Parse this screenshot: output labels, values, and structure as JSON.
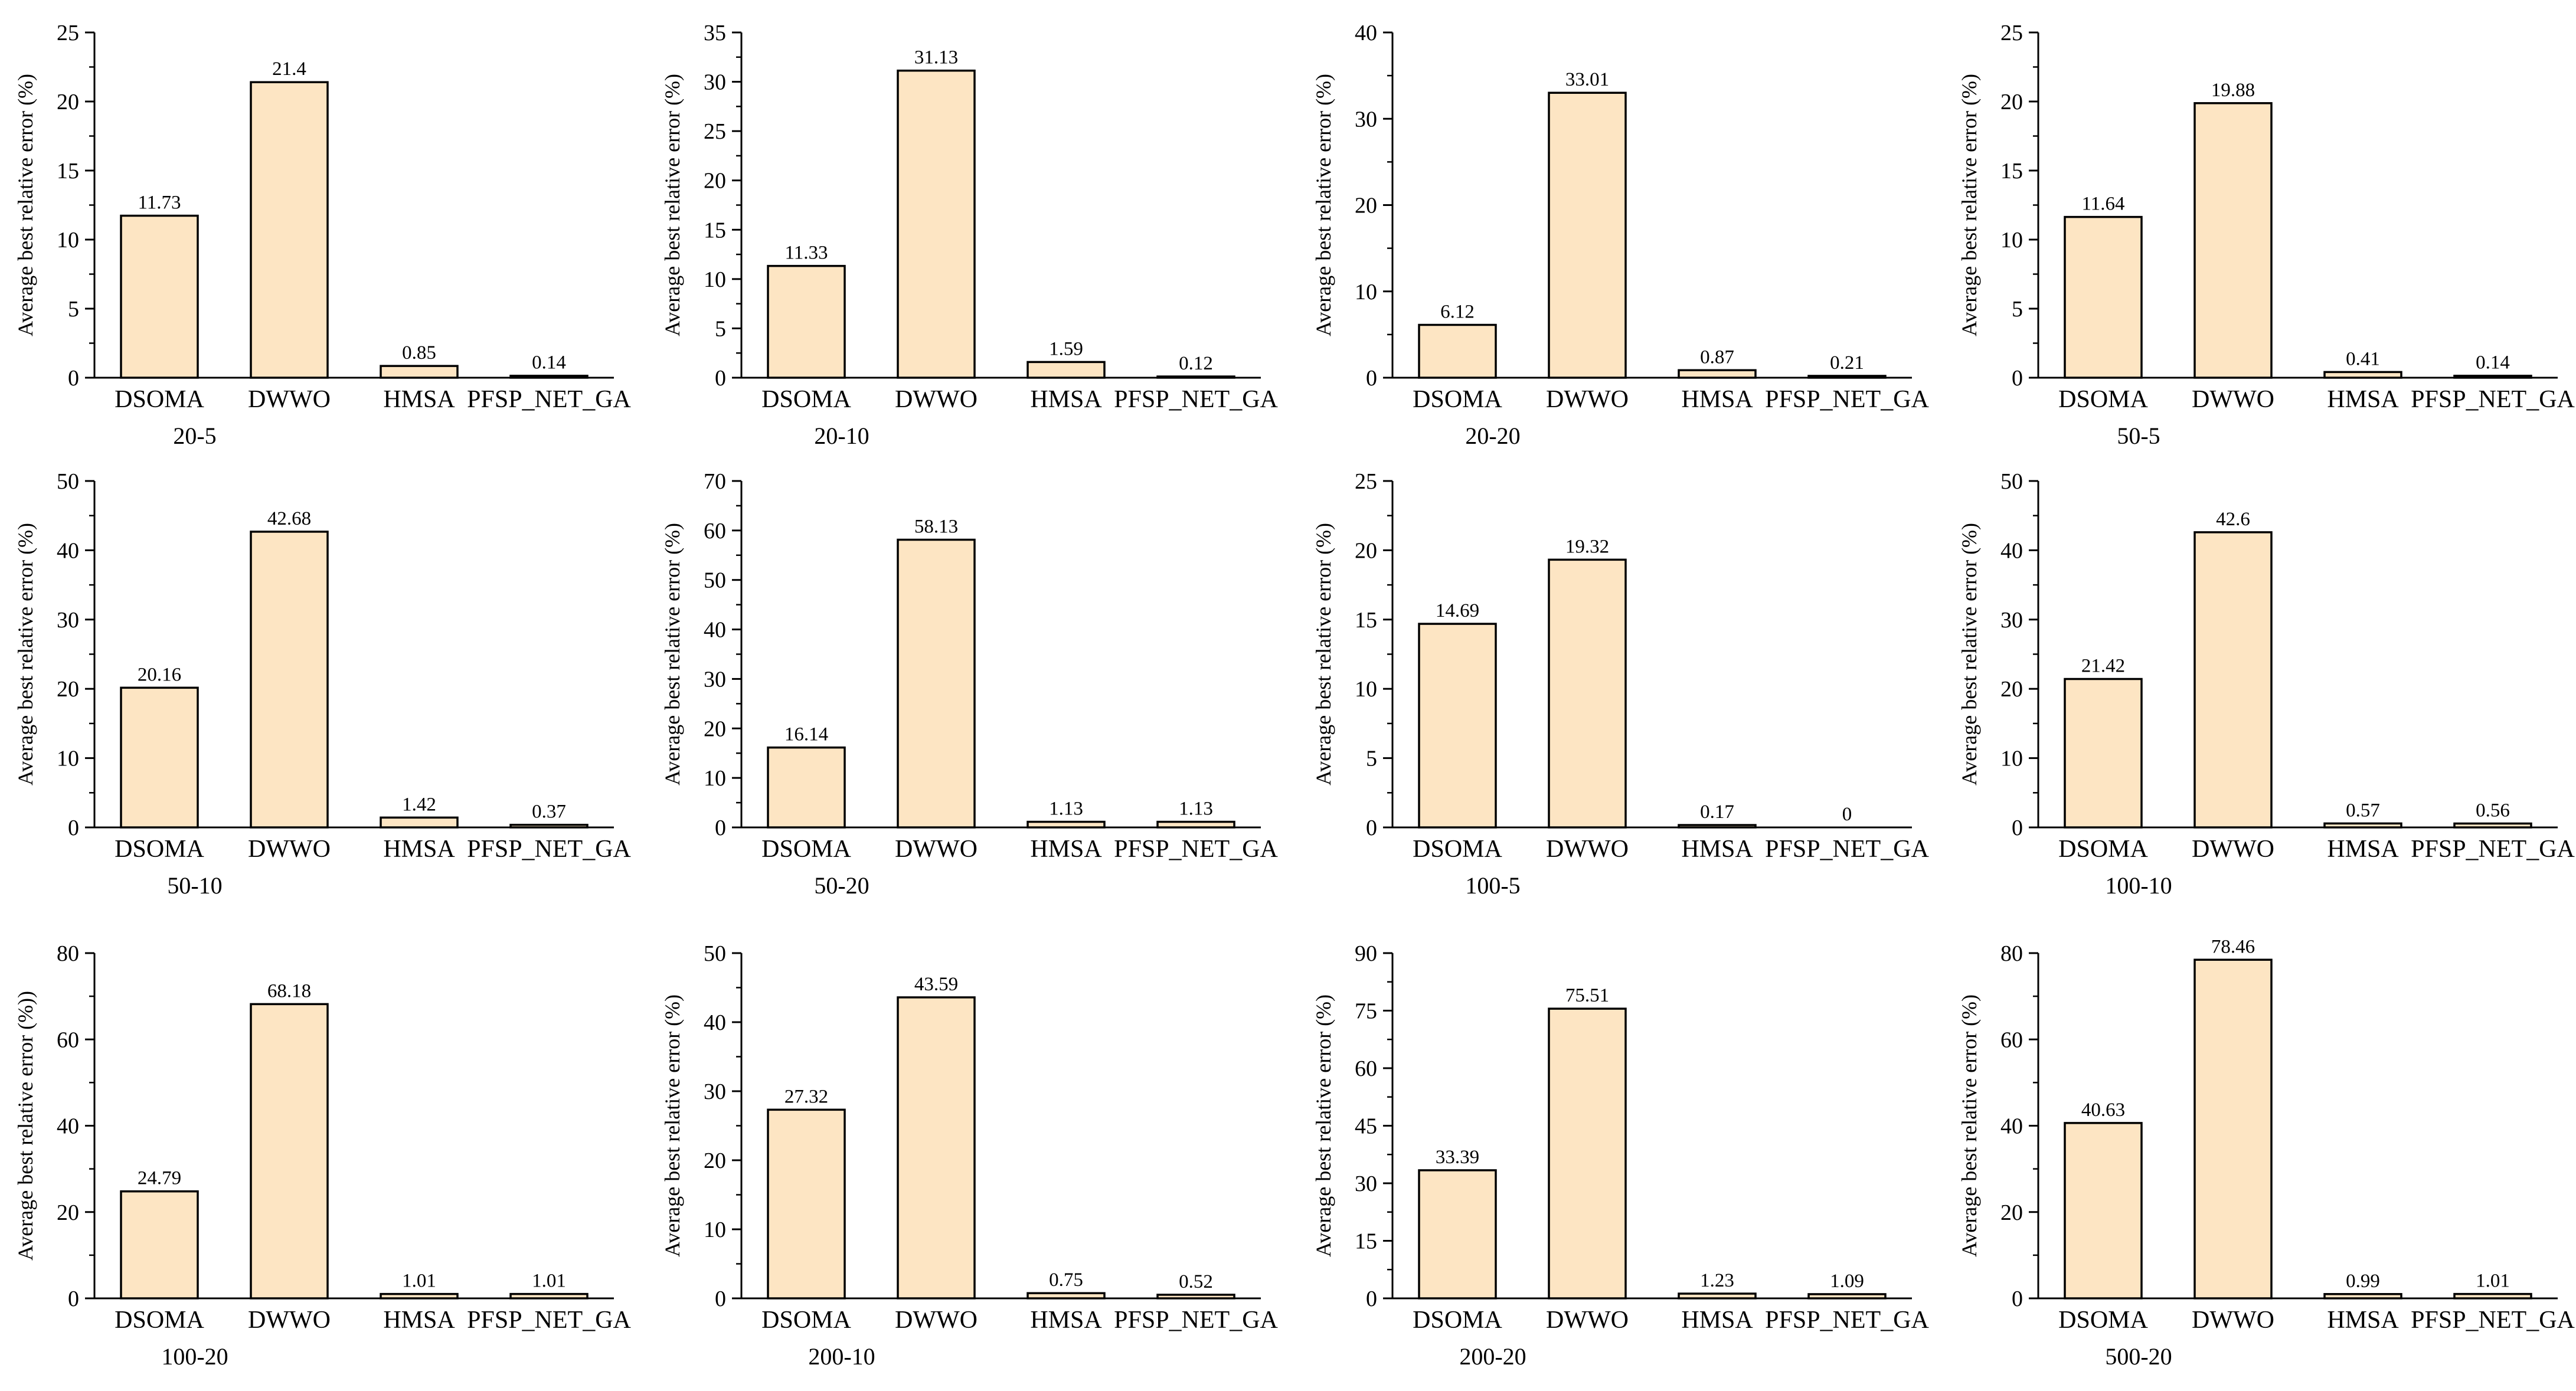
{
  "colors": {
    "bar_fill": "#FDE5C3",
    "bar_stroke": "#000000",
    "axis": "#000000"
  },
  "chart_data": [
    {
      "type": "bar",
      "title": "20-5",
      "ylabel": "Average best relative error (%)",
      "categories": [
        "DSOMA",
        "DWWO",
        "HMSA",
        "PFSP_NET_GA"
      ],
      "values": [
        11.73,
        21.4,
        0.85,
        0.14
      ],
      "value_labels": [
        "11.73",
        "21.4",
        "0.85",
        "0.14"
      ],
      "ylim": [
        0,
        25
      ],
      "yticks": [
        0,
        5,
        10,
        15,
        20,
        25
      ]
    },
    {
      "type": "bar",
      "title": "20-10",
      "ylabel": "Average best relative error (%)",
      "categories": [
        "DSOMA",
        "DWWO",
        "HMSA",
        "PFSP_NET_GA"
      ],
      "values": [
        11.33,
        31.13,
        1.59,
        0.12
      ],
      "value_labels": [
        "11.33",
        "31.13",
        "1.59",
        "0.12"
      ],
      "ylim": [
        0,
        35
      ],
      "yticks": [
        0,
        5,
        10,
        15,
        20,
        25,
        30,
        35
      ]
    },
    {
      "type": "bar",
      "title": "20-20",
      "ylabel": "Average best relative error (%)",
      "categories": [
        "DSOMA",
        "DWWO",
        "HMSA",
        "PFSP_NET_GA"
      ],
      "values": [
        6.12,
        33.01,
        0.87,
        0.21
      ],
      "value_labels": [
        "6.12",
        "33.01",
        "0.87",
        "0.21"
      ],
      "ylim": [
        0,
        40
      ],
      "yticks": [
        0,
        10,
        20,
        30,
        40
      ]
    },
    {
      "type": "bar",
      "title": "50-5",
      "ylabel": "Average best relative error (%)",
      "categories": [
        "DSOMA",
        "DWWO",
        "HMSA",
        "PFSP_NET_GA"
      ],
      "values": [
        11.64,
        19.88,
        0.41,
        0.14
      ],
      "value_labels": [
        "11.64",
        "19.88",
        "0.41",
        "0.14"
      ],
      "ylim": [
        0,
        25
      ],
      "yticks": [
        0,
        5,
        10,
        15,
        20,
        25
      ]
    },
    {
      "type": "bar",
      "title": "50-10",
      "ylabel": "Average best relative error (%)",
      "categories": [
        "DSOMA",
        "DWWO",
        "HMSA",
        "PFSP_NET_GA"
      ],
      "values": [
        20.16,
        42.68,
        1.42,
        0.37
      ],
      "value_labels": [
        "20.16",
        "42.68",
        "1.42",
        "0.37"
      ],
      "ylim": [
        0,
        50
      ],
      "yticks": [
        0,
        10,
        20,
        30,
        40,
        50
      ]
    },
    {
      "type": "bar",
      "title": "50-20",
      "ylabel": "Average best relative error (%)",
      "categories": [
        "DSOMA",
        "DWWO",
        "HMSA",
        "PFSP_NET_GA"
      ],
      "values": [
        16.14,
        58.13,
        1.13,
        1.13
      ],
      "value_labels": [
        "16.14",
        "58.13",
        "1.13",
        "1.13"
      ],
      "ylim": [
        0,
        70
      ],
      "yticks": [
        0,
        10,
        20,
        30,
        40,
        50,
        60,
        70
      ]
    },
    {
      "type": "bar",
      "title": "100-5",
      "ylabel": "Average best relative error (%)",
      "categories": [
        "DSOMA",
        "DWWO",
        "HMSA",
        "PFSP_NET_GA"
      ],
      "values": [
        14.69,
        19.32,
        0.17,
        0
      ],
      "value_labels": [
        "14.69",
        "19.32",
        "0.17",
        "0"
      ],
      "ylim": [
        0,
        25
      ],
      "yticks": [
        0,
        5,
        10,
        15,
        20,
        25
      ]
    },
    {
      "type": "bar",
      "title": "100-10",
      "ylabel": "Average best relative error (%)",
      "categories": [
        "DSOMA",
        "DWWO",
        "HMSA",
        "PFSP_NET_GA"
      ],
      "values": [
        21.42,
        42.6,
        0.57,
        0.56
      ],
      "value_labels": [
        "21.42",
        "42.6",
        "0.57",
        "0.56"
      ],
      "ylim": [
        0,
        50
      ],
      "yticks": [
        0,
        10,
        20,
        30,
        40,
        50
      ]
    },
    {
      "type": "bar",
      "title": "100-20",
      "ylabel": "Average best relative error (%))",
      "categories": [
        "DSOMA",
        "DWWO",
        "HMSA",
        "PFSP_NET_GA"
      ],
      "values": [
        24.79,
        68.18,
        1.01,
        1.01
      ],
      "value_labels": [
        "24.79",
        "68.18",
        "1.01",
        "1.01"
      ],
      "ylim": [
        0,
        80
      ],
      "yticks": [
        0,
        20,
        40,
        60,
        80
      ]
    },
    {
      "type": "bar",
      "title": "200-10",
      "ylabel": "Average best relative error (%)",
      "categories": [
        "DSOMA",
        "DWWO",
        "HMSA",
        "PFSP_NET_GA"
      ],
      "values": [
        27.32,
        43.59,
        0.75,
        0.52
      ],
      "value_labels": [
        "27.32",
        "43.59",
        "0.75",
        "0.52"
      ],
      "ylim": [
        0,
        50
      ],
      "yticks": [
        0,
        10,
        20,
        30,
        40,
        50
      ]
    },
    {
      "type": "bar",
      "title": "200-20",
      "ylabel": "Average best relative error (%)",
      "categories": [
        "DSOMA",
        "DWWO",
        "HMSA",
        "PFSP_NET_GA"
      ],
      "values": [
        33.39,
        75.51,
        1.23,
        1.09
      ],
      "value_labels": [
        "33.39",
        "75.51",
        "1.23",
        "1.09"
      ],
      "ylim": [
        0,
        90
      ],
      "yticks": [
        0,
        15,
        30,
        45,
        60,
        75,
        90
      ]
    },
    {
      "type": "bar",
      "title": "500-20",
      "ylabel": "Average best relative error (%)",
      "categories": [
        "DSOMA",
        "DWWO",
        "HMSA",
        "PFSP_NET_GA"
      ],
      "values": [
        40.63,
        78.46,
        0.99,
        1.01
      ],
      "value_labels": [
        "40.63",
        "78.46",
        "0.99",
        "1.01"
      ],
      "ylim": [
        0,
        80
      ],
      "yticks": [
        0,
        20,
        40,
        60,
        80
      ]
    }
  ]
}
